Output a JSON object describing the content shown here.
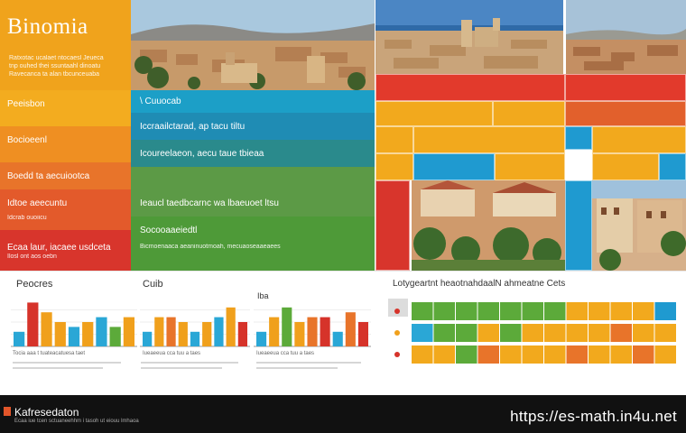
{
  "header": {
    "title": "Binomia",
    "subtitle_lines": [
      "Ratxotac ucalaet ntocaesl Jeueca",
      "tnp ouhed thei ssuntaahl dinoatu",
      "Ravecanca ta alan tbcunceuaba"
    ]
  },
  "left_bands": [
    {
      "label": "Peeisbon",
      "sublabel": "",
      "color": "#f3ac1f"
    },
    {
      "label": "Bocioeenl",
      "sublabel": "",
      "color": "#ef8f22"
    },
    {
      "label": "Boedd ta aecuiootca",
      "sublabel": "",
      "color": "#e8742a"
    },
    {
      "label": "Idtoe aeecuntu",
      "sublabel": "Idcrab ouoiicu",
      "color": "#e35a2b"
    },
    {
      "label": "Ecaa laur, iacaee usdceta",
      "sublabel": "Ilosl ont aos oebn",
      "color": "#d8352c"
    }
  ],
  "middle_bands": [
    {
      "label": "\\ Cuuocab",
      "sublabel": "",
      "color": "#1c9fc7"
    },
    {
      "label": "Iccraailctarad, ap tacu tiltu",
      "sublabel": "",
      "color": "#1f8cb4"
    },
    {
      "label": "Icoureelaeon, aecu taue tbieaa",
      "sublabel": "",
      "color": "#2a8a8c"
    },
    {
      "label": "Ieaucl taedbcarnc wa lbaeuoet ltsu",
      "sublabel": "",
      "color": "#5c9a46"
    },
    {
      "label": "Socooaaeiedtl",
      "sublabel": "Bicmoenaaca aeaninuotmoah, mecuaoseaaeaees",
      "color": "#4e9a38"
    }
  ],
  "bottom": {
    "panel1_title": "Peocres",
    "panel2_title": "Cuib",
    "panel3_title": "Iba",
    "panel4_title": "Lotygeartnt heaotnahdaalN ahmeatne Cets",
    "caption_a": "Tocia aaa t tuateacatuesa taet",
    "caption_b": "Iueaeeua cca tuu a taes",
    "caption_c": "Iueaeeua cca tuu a taes"
  },
  "charts": [
    {
      "name": "panel1",
      "values": [
        3,
        9,
        7,
        5,
        4,
        5,
        6,
        4,
        6
      ],
      "colors": [
        "#2aa7d6",
        "#d6332a",
        "#f0a01c",
        "#f0a01c",
        "#2aa7d6",
        "#f0a01c",
        "#2aa7d6",
        "#5caa3a",
        "#f0a01c"
      ]
    },
    {
      "name": "panel2",
      "values": [
        3,
        6,
        6,
        5,
        3,
        5,
        6,
        8,
        5
      ],
      "colors": [
        "#2aa7d6",
        "#f0a01c",
        "#e8742a",
        "#f0a01c",
        "#2aa7d6",
        "#f0a01c",
        "#2aa7d6",
        "#f0a01c",
        "#d6332a"
      ]
    },
    {
      "name": "panel3",
      "values": [
        3,
        6,
        8,
        5,
        6,
        6,
        3,
        7,
        5
      ],
      "colors": [
        "#2aa7d6",
        "#f0a01c",
        "#5caa3a",
        "#f0a01c",
        "#e8742a",
        "#d6332a",
        "#2aa7d6",
        "#e8742a",
        "#d6332a"
      ]
    }
  ],
  "footer": {
    "brand": "Kafresedaton",
    "small": "Ecaa iue tcen sctuaneehhm i tasoh ut eiouu lmhaoa",
    "url": "https://es-math.in4u.net"
  }
}
